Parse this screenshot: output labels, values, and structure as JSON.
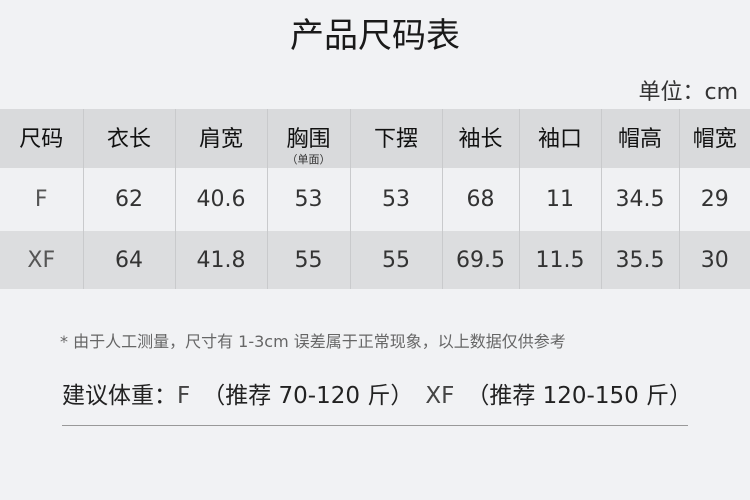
{
  "title": "产品尺码表",
  "unit": "单位：cm",
  "headers": [
    "尺码",
    "衣长",
    "肩宽",
    "胸围",
    "下摆",
    "袖长",
    "袖口",
    "帽高",
    "帽宽"
  ],
  "chest_note": "（单面）",
  "rows": [
    [
      "F",
      "62",
      "40.6",
      "53",
      "53",
      "68",
      "11",
      "34.5",
      "29"
    ],
    [
      "XF",
      "64",
      "41.8",
      "55",
      "55",
      "69.5",
      "11.5",
      "35.5",
      "30"
    ]
  ],
  "note": "* 由于人工测量，尺寸有 1-3cm 误差属于正常现象，以上数据仅供参考",
  "weight": {
    "label": "建议体重：",
    "f": "F",
    "f_range": "（推荐 70-120 斤）",
    "xf": "XF",
    "xf_range": "（推荐 120-150 斤）"
  }
}
